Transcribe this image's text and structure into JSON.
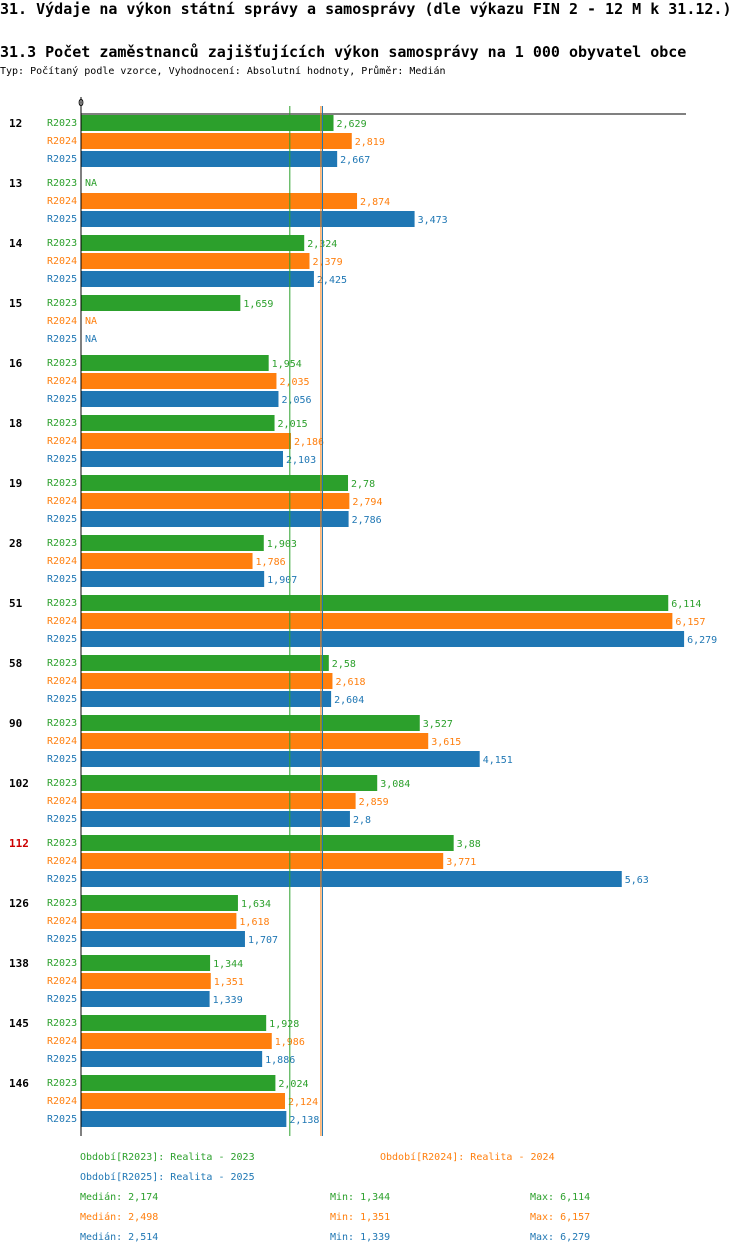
{
  "page": {
    "section_title": "31. Výdaje na výkon státní správy a samosprávy (dle výkazu FIN 2 - 12 M k 31.12.)",
    "chart_title": "31.3 Počet zaměstnanců zajišťujících výkon samosprávy na 1 000 obyvatel obce",
    "subtitle": "Typ: Počítaný podle vzorce, Vyhodnocení: Absolutní hodnoty, Průměr: Medián"
  },
  "colors": {
    "R2023": "#2ca02c",
    "R2024": "#ff7f0e",
    "R2025": "#1f77b4",
    "highlight": "#cc0000"
  },
  "chart_data": {
    "type": "bar",
    "orientation": "horizontal",
    "axis_zero_label": "0",
    "xlim": [
      0,
      6.279
    ],
    "highlighted_category": "112",
    "na_label": "NA",
    "categories": [
      "12",
      "13",
      "14",
      "15",
      "16",
      "18",
      "19",
      "28",
      "51",
      "58",
      "90",
      "102",
      "112",
      "126",
      "138",
      "145",
      "146"
    ],
    "series": [
      {
        "name": "R2023",
        "values": [
          2.629,
          null,
          2.324,
          1.659,
          1.954,
          2.015,
          2.78,
          1.903,
          6.114,
          2.58,
          3.527,
          3.084,
          3.88,
          1.634,
          1.344,
          1.928,
          2.024
        ],
        "labels": [
          "2,629",
          "NA",
          "2,324",
          "1,659",
          "1,954",
          "2,015",
          "2,78",
          "1,903",
          "6,114",
          "2,58",
          "3,527",
          "3,084",
          "3,88",
          "1,634",
          "1,344",
          "1,928",
          "2,024"
        ]
      },
      {
        "name": "R2024",
        "values": [
          2.819,
          2.874,
          2.379,
          null,
          2.035,
          2.186,
          2.794,
          1.786,
          6.157,
          2.618,
          3.615,
          2.859,
          3.771,
          1.618,
          1.351,
          1.986,
          2.124
        ],
        "labels": [
          "2,819",
          "2,874",
          "2,379",
          "NA",
          "2,035",
          "2,186",
          "2,794",
          "1,786",
          "6,157",
          "2,618",
          "3,615",
          "2,859",
          "3,771",
          "1,618",
          "1,351",
          "1,986",
          "2,124"
        ]
      },
      {
        "name": "R2025",
        "values": [
          2.667,
          3.473,
          2.425,
          null,
          2.056,
          2.103,
          2.786,
          1.907,
          6.279,
          2.604,
          4.151,
          2.8,
          5.63,
          1.707,
          1.339,
          1.886,
          2.138
        ],
        "labels": [
          "2,667",
          "3,473",
          "2,425",
          "NA",
          "2,056",
          "2,103",
          "2,786",
          "1,907",
          "6,279",
          "2,604",
          "4,151",
          "2,8",
          "5,63",
          "1,707",
          "1,339",
          "1,886",
          "2,138"
        ]
      }
    ],
    "medians": [
      {
        "series": "R2023",
        "value": 2.174
      },
      {
        "series": "R2024",
        "value": 2.498
      },
      {
        "series": "R2025",
        "value": 2.514
      }
    ],
    "legend": [
      {
        "series": "R2023",
        "label": "Období[R2023]: Realita - 2023"
      },
      {
        "series": "R2024",
        "label": "Období[R2024]: Realita - 2024"
      },
      {
        "series": "R2025",
        "label": "Období[R2025]: Realita - 2025"
      }
    ],
    "stats": [
      {
        "series": "R2023",
        "median": "Medián: 2,174",
        "min": "Min: 1,344",
        "max": "Max: 6,114"
      },
      {
        "series": "R2024",
        "median": "Medián: 2,498",
        "min": "Min: 1,351",
        "max": "Max: 6,157"
      },
      {
        "series": "R2025",
        "median": "Medián: 2,514",
        "min": "Min: 1,339",
        "max": "Max: 6,279"
      }
    ]
  }
}
